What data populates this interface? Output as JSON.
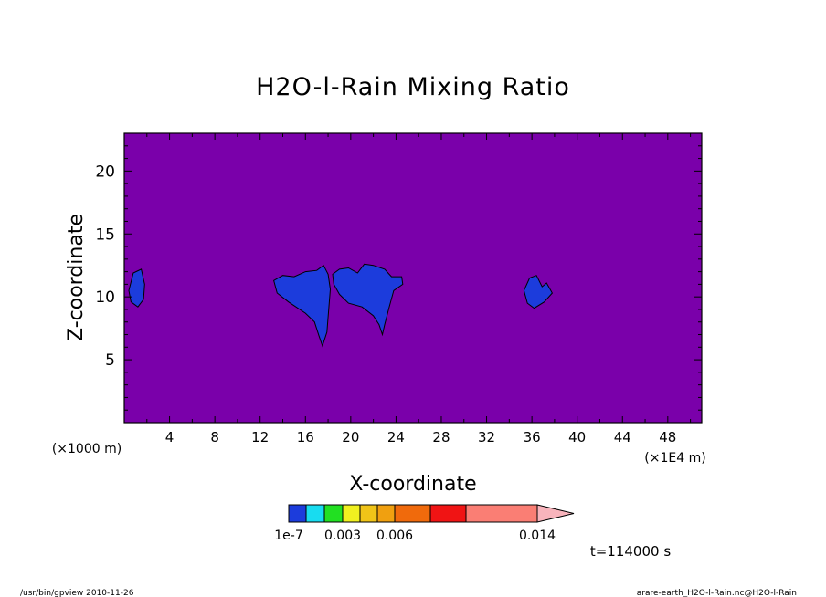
{
  "chart_data": {
    "type": "heatmap",
    "title": "H2O-l-Rain Mixing Ratio",
    "xlabel": "X-coordinate",
    "ylabel": "Z-coordinate",
    "x_unit_left": "(×1000 m)",
    "x_unit_right": "(×1E4 m)",
    "xlim": [
      0,
      51
    ],
    "ylim": [
      0,
      23
    ],
    "x_ticks": [
      4,
      8,
      12,
      16,
      20,
      24,
      28,
      32,
      36,
      40,
      44,
      48
    ],
    "x_tick_labels": [
      "4",
      "8",
      "12",
      "16",
      "20",
      "24",
      "28",
      "32",
      "36",
      "40",
      "44",
      "48"
    ],
    "y_ticks": [
      5,
      10,
      15,
      20
    ],
    "y_tick_labels": [
      "5",
      "10",
      "15",
      "20"
    ],
    "background_color": "#7a00aa",
    "colorbar": {
      "colors": [
        "#1c3cdc",
        "#18dcf0",
        "#22e022",
        "#f0f020",
        "#f0c418",
        "#f0a010",
        "#f06a0c",
        "#f01414",
        "#fa7e74"
      ],
      "extend_color": "#f8b4bc",
      "tick_labels": [
        "1e-7",
        "0.003",
        "0.006",
        "0.014"
      ]
    },
    "time_label": "t=114000 s",
    "regions": [
      {
        "level": "blue",
        "points": [
          [
            0.4,
            10.5
          ],
          [
            0.8,
            11.9
          ],
          [
            1.5,
            12.2
          ],
          [
            1.8,
            11.0
          ],
          [
            1.7,
            9.8
          ],
          [
            1.2,
            9.2
          ],
          [
            0.6,
            9.6
          ]
        ]
      },
      {
        "level": "blue",
        "points": [
          [
            13.2,
            11.3
          ],
          [
            14.0,
            11.7
          ],
          [
            15.0,
            11.6
          ],
          [
            16.0,
            12.0
          ],
          [
            17.0,
            12.1
          ],
          [
            17.6,
            12.5
          ],
          [
            18.0,
            11.8
          ],
          [
            18.2,
            10.6
          ],
          [
            18.0,
            8.4
          ],
          [
            17.9,
            7.2
          ],
          [
            17.5,
            6.1
          ],
          [
            17.2,
            6.9
          ],
          [
            16.8,
            8.0
          ],
          [
            16.0,
            8.7
          ],
          [
            14.5,
            9.6
          ],
          [
            13.5,
            10.3
          ]
        ]
      },
      {
        "level": "blue",
        "points": [
          [
            18.4,
            11.8
          ],
          [
            19.0,
            12.2
          ],
          [
            19.8,
            12.3
          ],
          [
            20.6,
            11.9
          ],
          [
            21.2,
            12.6
          ],
          [
            22.0,
            12.5
          ],
          [
            23.0,
            12.2
          ],
          [
            23.6,
            11.6
          ],
          [
            24.5,
            11.6
          ],
          [
            24.6,
            11.0
          ],
          [
            23.8,
            10.5
          ],
          [
            23.4,
            9.2
          ],
          [
            23.0,
            7.8
          ],
          [
            22.8,
            7.0
          ],
          [
            22.5,
            7.8
          ],
          [
            22.0,
            8.5
          ],
          [
            21.0,
            9.2
          ],
          [
            19.8,
            9.5
          ],
          [
            19.0,
            10.2
          ],
          [
            18.5,
            11.0
          ]
        ]
      },
      {
        "level": "blue",
        "points": [
          [
            35.3,
            10.5
          ],
          [
            35.8,
            11.5
          ],
          [
            36.4,
            11.7
          ],
          [
            36.9,
            10.8
          ],
          [
            37.3,
            11.1
          ],
          [
            37.8,
            10.3
          ],
          [
            37.1,
            9.6
          ],
          [
            36.2,
            9.1
          ],
          [
            35.6,
            9.5
          ]
        ]
      }
    ]
  },
  "footer": {
    "left": "/usr/bin/gpview  2010-11-26",
    "right": "arare-earth_H2O-l-Rain.nc@H2O-l-Rain"
  }
}
